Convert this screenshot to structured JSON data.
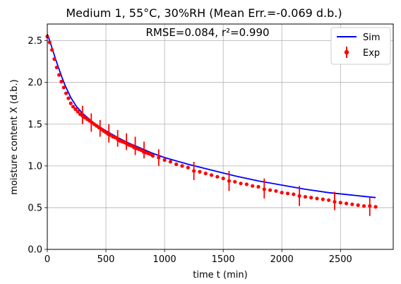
{
  "chart_data": {
    "type": "line",
    "title": "Medium 1, 55°C, 30%RH  (Mean Err.=-0.069 d.b.)",
    "annotation": "RMSE=0.084, r²=0.990",
    "xlabel": "time t (min)",
    "ylabel": "moisture content X (d.b.)",
    "xlim": [
      0,
      2950
    ],
    "ylim": [
      0,
      2.7
    ],
    "xticks": [
      "0",
      "500",
      "1000",
      "1500",
      "2000",
      "2500"
    ],
    "yticks": [
      "0.0",
      "0.5",
      "1.0",
      "1.5",
      "2.0",
      "2.5"
    ],
    "grid": true,
    "legend": "top-right",
    "colors": {
      "sim": "#0000ff",
      "exp": "#ff0000"
    },
    "series": [
      {
        "name": "Sim",
        "kind": "line",
        "x": [
          0,
          25,
          50,
          75,
          100,
          125,
          150,
          200,
          250,
          300,
          400,
          500,
          600,
          700,
          800,
          900,
          1000,
          1200,
          1400,
          1600,
          1800,
          2000,
          2200,
          2400,
          2600,
          2800
        ],
        "y": [
          2.58,
          2.48,
          2.37,
          2.26,
          2.16,
          2.06,
          1.97,
          1.82,
          1.71,
          1.63,
          1.51,
          1.42,
          1.34,
          1.27,
          1.21,
          1.15,
          1.1,
          1.02,
          0.95,
          0.88,
          0.82,
          0.77,
          0.72,
          0.68,
          0.65,
          0.62
        ]
      },
      {
        "name": "Exp",
        "kind": "scatter",
        "x": [
          0,
          20,
          40,
          60,
          80,
          100,
          120,
          140,
          160,
          180,
          200,
          220,
          240,
          260,
          280,
          300,
          320,
          340,
          360,
          380,
          400,
          420,
          440,
          460,
          480,
          500,
          520,
          540,
          560,
          580,
          600,
          620,
          640,
          660,
          680,
          700,
          720,
          740,
          760,
          780,
          800,
          820,
          840,
          860,
          880,
          900,
          950,
          1000,
          1050,
          1100,
          1150,
          1200,
          1250,
          1300,
          1350,
          1400,
          1450,
          1500,
          1550,
          1600,
          1650,
          1700,
          1750,
          1800,
          1850,
          1900,
          1950,
          2000,
          2050,
          2100,
          2150,
          2200,
          2250,
          2300,
          2350,
          2400,
          2450,
          2500,
          2550,
          2600,
          2650,
          2700,
          2750,
          2800
        ],
        "y": [
          2.55,
          2.48,
          2.39,
          2.28,
          2.18,
          2.09,
          2.01,
          1.94,
          1.87,
          1.81,
          1.75,
          1.71,
          1.68,
          1.65,
          1.62,
          1.6,
          1.58,
          1.56,
          1.54,
          1.52,
          1.5,
          1.48,
          1.46,
          1.44,
          1.42,
          1.4,
          1.38,
          1.37,
          1.35,
          1.34,
          1.32,
          1.3,
          1.29,
          1.28,
          1.26,
          1.25,
          1.24,
          1.22,
          1.21,
          1.2,
          1.19,
          1.17,
          1.16,
          1.15,
          1.14,
          1.12,
          1.1,
          1.07,
          1.05,
          1.02,
          1.0,
          0.98,
          0.94,
          0.93,
          0.91,
          0.89,
          0.87,
          0.85,
          0.82,
          0.81,
          0.79,
          0.78,
          0.76,
          0.75,
          0.72,
          0.71,
          0.7,
          0.68,
          0.67,
          0.66,
          0.64,
          0.63,
          0.62,
          0.61,
          0.6,
          0.59,
          0.57,
          0.56,
          0.55,
          0.54,
          0.53,
          0.52,
          0.52,
          0.51
        ],
        "error_x": [
          300,
          375,
          450,
          525,
          600,
          675,
          750,
          825,
          950,
          1250,
          1550,
          1850,
          2150,
          2450,
          2750
        ],
        "error_y": [
          1.61,
          1.52,
          1.45,
          1.39,
          1.33,
          1.29,
          1.24,
          1.19,
          1.1,
          0.94,
          0.82,
          0.73,
          0.64,
          0.58,
          0.51
        ],
        "error_size": [
          0.11,
          0.11,
          0.1,
          0.11,
          0.1,
          0.1,
          0.11,
          0.1,
          0.1,
          0.11,
          0.12,
          0.12,
          0.12,
          0.11,
          0.11
        ]
      }
    ]
  }
}
